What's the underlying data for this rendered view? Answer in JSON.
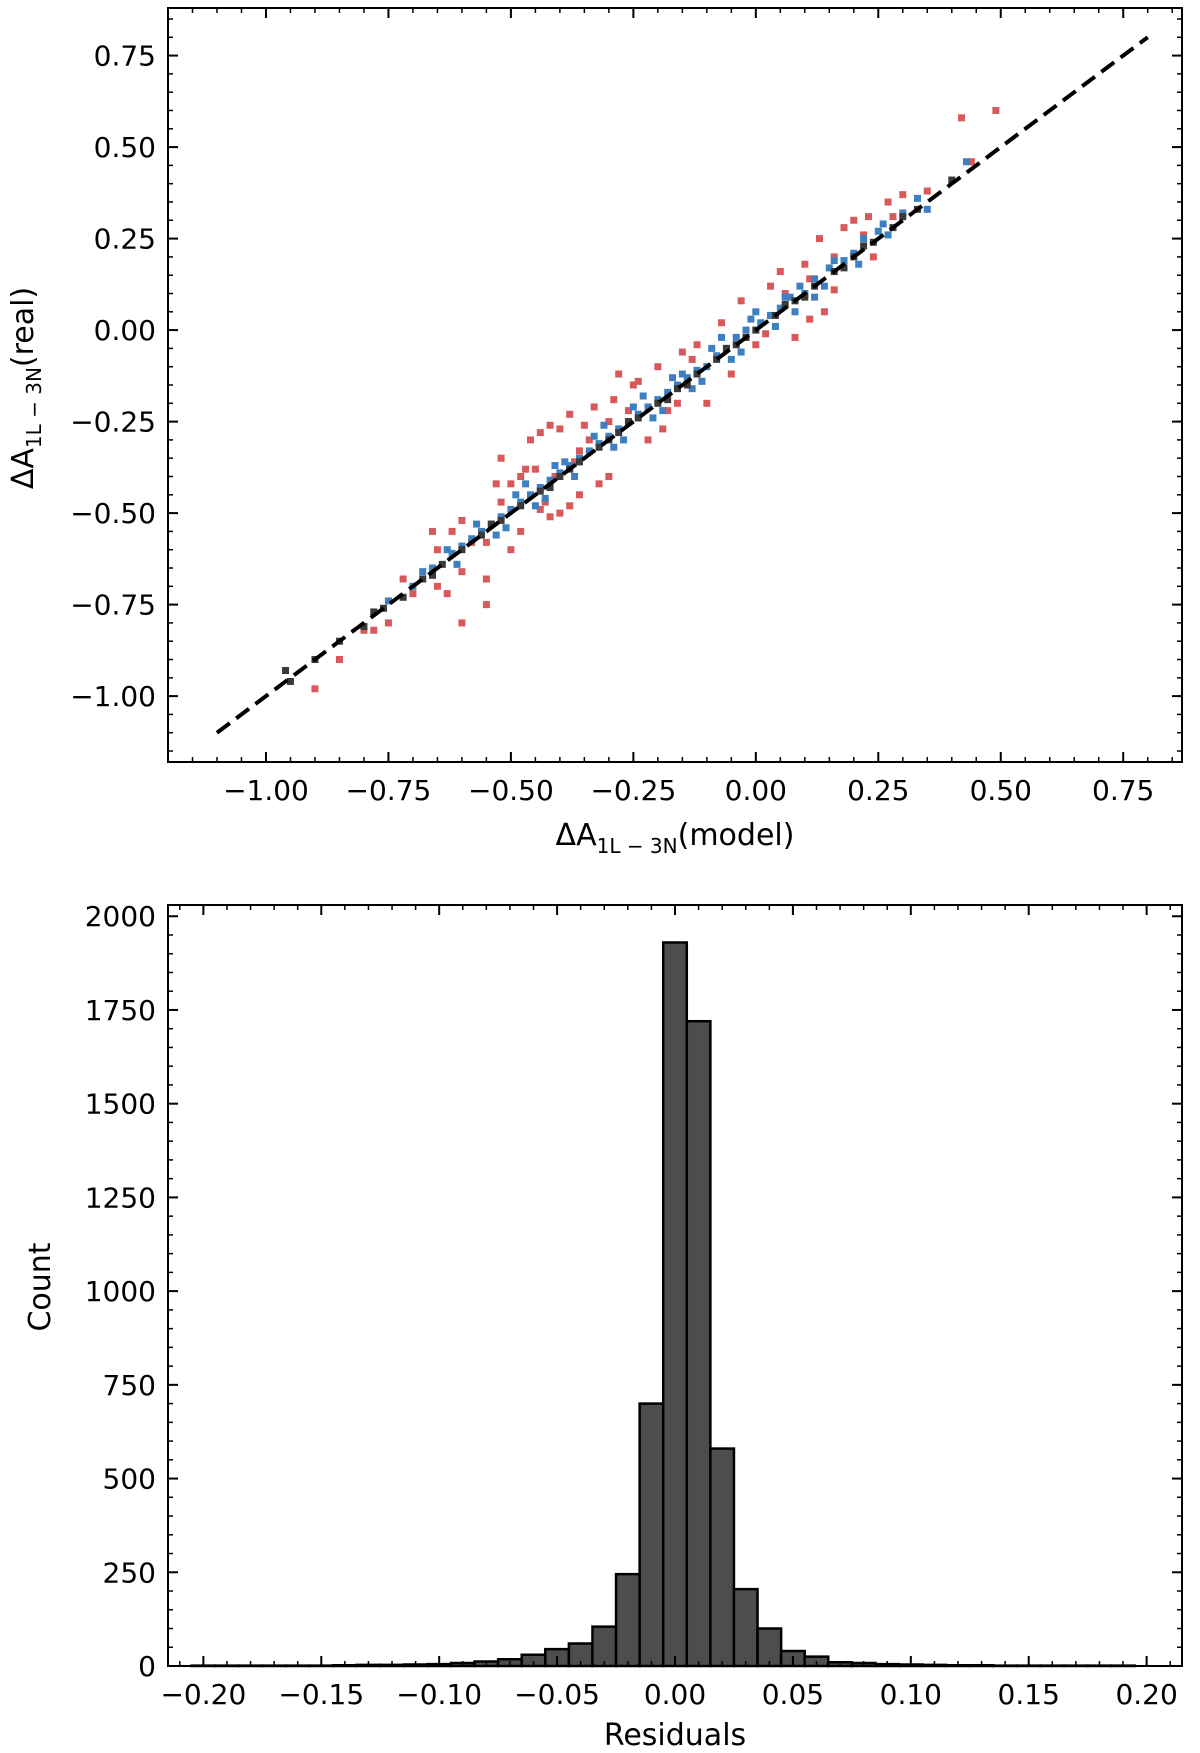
{
  "chart_data": [
    {
      "type": "scatter",
      "xlabel": {
        "main": "ΔA",
        "sub": "1L − 3N",
        "suffix": "(model)"
      },
      "ylabel": {
        "main": "ΔA",
        "sub": "1L − 3N",
        "suffix": "(real)"
      },
      "xlim": [
        -1.2,
        0.87
      ],
      "ylim": [
        -1.18,
        0.88
      ],
      "xticks": [
        -1.0,
        -0.75,
        -0.5,
        -0.25,
        0.0,
        0.25,
        0.5,
        0.75
      ],
      "xtick_labels": [
        "−1.00",
        "−0.75",
        "−0.50",
        "−0.25",
        "0.00",
        "0.25",
        "0.50",
        "0.75"
      ],
      "yticks": [
        -1.0,
        -0.75,
        -0.5,
        -0.25,
        0.0,
        0.25,
        0.5,
        0.75
      ],
      "ytick_labels": [
        "−1.00",
        "−0.75",
        "−0.50",
        "−0.25",
        "0.00",
        "0.25",
        "0.50",
        "0.75"
      ],
      "reference_line": {
        "x": [
          -1.1,
          0.8
        ],
        "y": [
          -1.1,
          0.8
        ],
        "style": "dashed",
        "color": "#000000"
      },
      "series": [
        {
          "color": "#d9595b",
          "points": [
            [
              0.42,
              0.58
            ],
            [
              0.49,
              0.6
            ],
            [
              0.44,
              0.46
            ],
            [
              0.35,
              0.38
            ],
            [
              0.27,
              0.35
            ],
            [
              0.23,
              0.31
            ],
            [
              0.13,
              0.25
            ],
            [
              0.18,
              0.28
            ],
            [
              0.3,
              0.37
            ],
            [
              0.22,
              0.26
            ],
            [
              0.06,
              0.1
            ],
            [
              0.1,
              0.18
            ],
            [
              0.14,
              0.05
            ],
            [
              0.03,
              0.12
            ],
            [
              -0.03,
              0.08
            ],
            [
              0.08,
              -0.02
            ],
            [
              0.16,
              0.11
            ],
            [
              0.11,
              0.03
            ],
            [
              -0.07,
              0.02
            ],
            [
              0.0,
              -0.04
            ],
            [
              -0.13,
              -0.08
            ],
            [
              -0.15,
              -0.06
            ],
            [
              -0.2,
              -0.1
            ],
            [
              -0.1,
              -0.2
            ],
            [
              -0.18,
              -0.22
            ],
            [
              -0.24,
              -0.14
            ],
            [
              -0.3,
              -0.25
            ],
            [
              -0.28,
              -0.12
            ],
            [
              -0.33,
              -0.21
            ],
            [
              -0.35,
              -0.26
            ],
            [
              -0.38,
              -0.23
            ],
            [
              -0.4,
              -0.27
            ],
            [
              -0.42,
              -0.26
            ],
            [
              -0.44,
              -0.28
            ],
            [
              -0.46,
              -0.3
            ],
            [
              -0.3,
              -0.4
            ],
            [
              -0.32,
              -0.42
            ],
            [
              -0.36,
              -0.45
            ],
            [
              -0.38,
              -0.48
            ],
            [
              -0.4,
              -0.5
            ],
            [
              -0.42,
              -0.51
            ],
            [
              -0.44,
              -0.49
            ],
            [
              -0.48,
              -0.55
            ],
            [
              -0.45,
              -0.38
            ],
            [
              -0.5,
              -0.42
            ],
            [
              -0.52,
              -0.47
            ],
            [
              -0.55,
              -0.58
            ],
            [
              -0.58,
              -0.58
            ],
            [
              -0.6,
              -0.52
            ],
            [
              -0.62,
              -0.55
            ],
            [
              -0.65,
              -0.6
            ],
            [
              -0.66,
              -0.55
            ],
            [
              -0.5,
              -0.6
            ],
            [
              -0.55,
              -0.68
            ],
            [
              -0.6,
              -0.66
            ],
            [
              -0.65,
              -0.7
            ],
            [
              -0.7,
              -0.72
            ],
            [
              -0.72,
              -0.68
            ],
            [
              -0.75,
              -0.8
            ],
            [
              -0.55,
              -0.75
            ],
            [
              -0.6,
              -0.8
            ],
            [
              -0.8,
              -0.82
            ],
            [
              -0.85,
              -0.9
            ],
            [
              -0.9,
              -0.98
            ],
            [
              -0.78,
              -0.82
            ],
            [
              -0.63,
              -0.72
            ],
            [
              -0.48,
              -0.4
            ],
            [
              -0.25,
              -0.15
            ],
            [
              -0.22,
              -0.3
            ],
            [
              -0.37,
              -0.36
            ],
            [
              -0.26,
              -0.22
            ],
            [
              -0.52,
              -0.35
            ],
            [
              -0.19,
              -0.27
            ],
            [
              0.05,
              0.16
            ],
            [
              0.2,
              0.3
            ],
            [
              0.24,
              0.2
            ],
            [
              0.02,
              -0.01
            ],
            [
              -0.05,
              -0.12
            ],
            [
              -0.34,
              -0.3
            ],
            [
              -0.41,
              -0.4
            ],
            [
              0.11,
              0.14
            ],
            [
              0.28,
              0.31
            ],
            [
              -0.12,
              -0.04
            ],
            [
              -0.16,
              -0.2
            ],
            [
              -0.47,
              -0.38
            ],
            [
              -0.53,
              -0.42
            ],
            [
              -0.29,
              -0.19
            ],
            [
              -0.36,
              -0.33
            ],
            [
              -0.43,
              -0.47
            ],
            [
              0.16,
              0.2
            ]
          ]
        },
        {
          "color": "#3d7fc1",
          "points": [
            [
              0.43,
              0.46
            ],
            [
              0.35,
              0.33
            ],
            [
              0.3,
              0.32
            ],
            [
              0.27,
              0.26
            ],
            [
              0.25,
              0.27
            ],
            [
              0.22,
              0.25
            ],
            [
              0.2,
              0.21
            ],
            [
              0.18,
              0.19
            ],
            [
              0.15,
              0.17
            ],
            [
              0.12,
              0.14
            ],
            [
              0.1,
              0.1
            ],
            [
              0.07,
              0.09
            ],
            [
              0.05,
              0.06
            ],
            [
              0.03,
              0.04
            ],
            [
              0.01,
              0.02
            ],
            [
              -0.02,
              0.0
            ],
            [
              -0.04,
              -0.02
            ],
            [
              -0.06,
              -0.05
            ],
            [
              -0.08,
              -0.07
            ],
            [
              -0.1,
              -0.1
            ],
            [
              -0.12,
              -0.11
            ],
            [
              -0.14,
              -0.13
            ],
            [
              -0.16,
              -0.15
            ],
            [
              -0.18,
              -0.17
            ],
            [
              -0.2,
              -0.19
            ],
            [
              -0.22,
              -0.21
            ],
            [
              -0.24,
              -0.23
            ],
            [
              -0.26,
              -0.25
            ],
            [
              -0.28,
              -0.27
            ],
            [
              -0.3,
              -0.29
            ],
            [
              -0.32,
              -0.31
            ],
            [
              -0.34,
              -0.33
            ],
            [
              -0.36,
              -0.35
            ],
            [
              -0.38,
              -0.37
            ],
            [
              -0.4,
              -0.39
            ],
            [
              -0.42,
              -0.41
            ],
            [
              -0.44,
              -0.43
            ],
            [
              -0.46,
              -0.45
            ],
            [
              -0.48,
              -0.47
            ],
            [
              -0.5,
              -0.49
            ],
            [
              -0.52,
              -0.51
            ],
            [
              -0.54,
              -0.53
            ],
            [
              -0.56,
              -0.55
            ],
            [
              -0.58,
              -0.57
            ],
            [
              -0.6,
              -0.59
            ],
            [
              -0.62,
              -0.61
            ],
            [
              -0.66,
              -0.65
            ],
            [
              -0.68,
              -0.66
            ],
            [
              -0.7,
              -0.7
            ],
            [
              -0.75,
              -0.74
            ],
            [
              0.16,
              0.19
            ],
            [
              0.12,
              0.09
            ],
            [
              0.09,
              0.12
            ],
            [
              0.04,
              0.01
            ],
            [
              -0.01,
              0.03
            ],
            [
              -0.05,
              -0.08
            ],
            [
              -0.09,
              -0.05
            ],
            [
              -0.13,
              -0.16
            ],
            [
              -0.17,
              -0.13
            ],
            [
              -0.21,
              -0.24
            ],
            [
              -0.25,
              -0.21
            ],
            [
              -0.29,
              -0.32
            ],
            [
              -0.33,
              -0.29
            ],
            [
              -0.37,
              -0.4
            ],
            [
              -0.41,
              -0.37
            ],
            [
              -0.45,
              -0.48
            ],
            [
              -0.49,
              -0.45
            ],
            [
              -0.53,
              -0.56
            ],
            [
              -0.57,
              -0.53
            ],
            [
              -0.61,
              -0.64
            ],
            [
              0.21,
              0.18
            ],
            [
              0.26,
              0.29
            ],
            [
              0.33,
              0.36
            ],
            [
              0.08,
              0.05
            ],
            [
              -0.03,
              -0.06
            ],
            [
              -0.15,
              -0.12
            ],
            [
              -0.27,
              -0.3
            ],
            [
              -0.39,
              -0.36
            ],
            [
              -0.51,
              -0.54
            ],
            [
              -0.63,
              -0.6
            ],
            [
              0.0,
              0.05
            ],
            [
              -0.07,
              -0.02
            ],
            [
              -0.19,
              -0.22
            ],
            [
              -0.31,
              -0.26
            ],
            [
              -0.43,
              -0.46
            ],
            [
              -0.47,
              -0.42
            ],
            [
              -0.23,
              -0.18
            ],
            [
              -0.11,
              -0.14
            ],
            [
              0.06,
              0.09
            ],
            [
              0.14,
              0.12
            ]
          ]
        },
        {
          "color": "#3a3a3a",
          "points": [
            [
              0.4,
              0.41
            ],
            [
              0.33,
              0.33
            ],
            [
              0.28,
              0.28
            ],
            [
              0.24,
              0.24
            ],
            [
              0.2,
              0.2
            ],
            [
              0.16,
              0.16
            ],
            [
              0.12,
              0.12
            ],
            [
              0.08,
              0.08
            ],
            [
              0.04,
              0.04
            ],
            [
              0.0,
              0.0
            ],
            [
              -0.04,
              -0.04
            ],
            [
              -0.08,
              -0.08
            ],
            [
              -0.12,
              -0.12
            ],
            [
              -0.16,
              -0.16
            ],
            [
              -0.2,
              -0.2
            ],
            [
              -0.24,
              -0.24
            ],
            [
              -0.28,
              -0.28
            ],
            [
              -0.32,
              -0.32
            ],
            [
              -0.36,
              -0.36
            ],
            [
              -0.4,
              -0.4
            ],
            [
              -0.44,
              -0.44
            ],
            [
              -0.48,
              -0.48
            ],
            [
              -0.52,
              -0.52
            ],
            [
              -0.56,
              -0.56
            ],
            [
              -0.6,
              -0.6
            ],
            [
              -0.64,
              -0.64
            ],
            [
              -0.68,
              -0.68
            ],
            [
              -0.72,
              -0.73
            ],
            [
              -0.76,
              -0.76
            ],
            [
              -0.8,
              -0.81
            ],
            [
              -0.85,
              -0.85
            ],
            [
              -0.9,
              -0.9
            ],
            [
              -0.95,
              -0.96
            ],
            [
              -0.96,
              -0.93
            ],
            [
              0.3,
              0.31
            ],
            [
              0.18,
              0.17
            ],
            [
              0.06,
              0.07
            ],
            [
              -0.06,
              -0.05
            ],
            [
              -0.18,
              -0.19
            ],
            [
              -0.3,
              -0.3
            ],
            [
              -0.42,
              -0.43
            ],
            [
              -0.54,
              -0.53
            ],
            [
              -0.66,
              -0.67
            ],
            [
              -0.78,
              -0.77
            ],
            [
              0.22,
              0.23
            ],
            [
              0.1,
              0.09
            ],
            [
              -0.02,
              -0.02
            ],
            [
              -0.14,
              -0.15
            ],
            [
              -0.26,
              -0.25
            ],
            [
              -0.38,
              -0.38
            ]
          ]
        }
      ]
    },
    {
      "type": "bar",
      "subtype": "histogram",
      "xlabel": "Residuals",
      "ylabel": "Count",
      "xlim": [
        -0.215,
        0.215
      ],
      "ylim": [
        0,
        2030
      ],
      "xticks": [
        -0.2,
        -0.15,
        -0.1,
        -0.05,
        0.0,
        0.05,
        0.1,
        0.15,
        0.2
      ],
      "xtick_labels": [
        "−0.20",
        "−0.15",
        "−0.10",
        "−0.05",
        "0.00",
        "0.05",
        "0.10",
        "0.15",
        "0.20"
      ],
      "yticks": [
        0,
        250,
        500,
        750,
        1000,
        1250,
        1500,
        1750,
        2000
      ],
      "ytick_labels": [
        "0",
        "250",
        "500",
        "750",
        "1000",
        "1250",
        "1500",
        "1750",
        "2000"
      ],
      "bar_color": "#4d4d4d",
      "edge_color": "#000000",
      "bin_edges": [
        -0.205,
        -0.195,
        -0.185,
        -0.175,
        -0.165,
        -0.155,
        -0.145,
        -0.135,
        -0.125,
        -0.115,
        -0.105,
        -0.095,
        -0.085,
        -0.075,
        -0.065,
        -0.055,
        -0.045,
        -0.035,
        -0.025,
        -0.015,
        -0.005,
        0.005,
        0.015,
        0.025,
        0.035,
        0.045,
        0.055,
        0.065,
        0.075,
        0.085,
        0.095,
        0.105,
        0.115,
        0.125,
        0.135,
        0.145,
        0.155,
        0.165,
        0.175,
        0.185,
        0.195
      ],
      "counts": [
        1,
        1,
        1,
        1,
        1,
        1,
        2,
        3,
        3,
        4,
        5,
        8,
        12,
        18,
        30,
        45,
        60,
        105,
        245,
        700,
        1930,
        1720,
        580,
        205,
        100,
        40,
        25,
        10,
        8,
        5,
        4,
        3,
        2,
        2,
        1,
        1,
        1,
        1,
        1,
        1
      ]
    }
  ]
}
